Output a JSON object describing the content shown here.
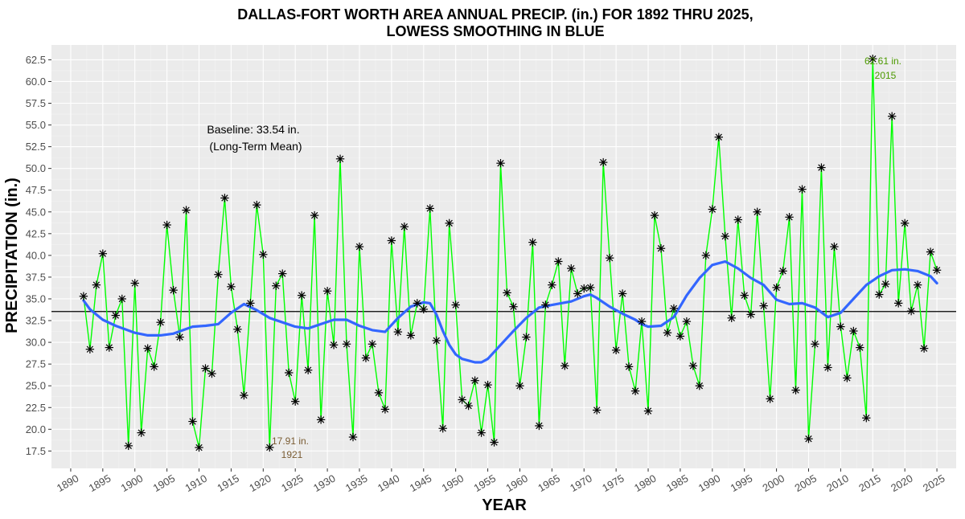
{
  "chart_data": {
    "type": "line",
    "title_line1": "DALLAS-FORT WORTH AREA ANNUAL PRECIP. (in.) FOR 1892 THRU 2025,",
    "title_line2": "LOWESS SMOOTHING IN BLUE",
    "xlabel": "YEAR",
    "ylabel": "PRECIPITATION (in.)",
    "xlim": [
      1887,
      2028
    ],
    "ylim": [
      15.5,
      64.2
    ],
    "grid": true,
    "x_ticks": [
      1890,
      1895,
      1900,
      1905,
      1910,
      1915,
      1920,
      1925,
      1930,
      1935,
      1940,
      1945,
      1950,
      1955,
      1960,
      1965,
      1970,
      1975,
      1980,
      1985,
      1990,
      1995,
      2000,
      2005,
      2010,
      2015,
      2020,
      2025
    ],
    "x_tick_labels": [
      "1890",
      "1895",
      "1900",
      "1905",
      "1910",
      "1915",
      "1920",
      "1925",
      "1930",
      "1935",
      "1940",
      "1945",
      "1950",
      "1955",
      "1960",
      "1965",
      "1970",
      "1975",
      "1980",
      "1985",
      "1990",
      "1995",
      "2000",
      "2005",
      "2010",
      "2015",
      "2020",
      "2025"
    ],
    "y_ticks": [
      17.5,
      20.0,
      22.5,
      25.0,
      27.5,
      30.0,
      32.5,
      35.0,
      37.5,
      40.0,
      42.5,
      45.0,
      47.5,
      50.0,
      52.5,
      55.0,
      57.5,
      60.0,
      62.5
    ],
    "y_tick_labels": [
      "17.5",
      "20.0",
      "22.5",
      "25.0",
      "27.5",
      "30.0",
      "32.5",
      "35.0",
      "37.5",
      "40.0",
      "42.5",
      "45.0",
      "47.5",
      "50.0",
      "52.5",
      "55.0",
      "57.5",
      "60.0",
      "62.5"
    ],
    "baseline": 33.54,
    "series": [
      {
        "color": "#00ff00",
        "marker": "asterisk",
        "x": [
          1892,
          1893,
          1894,
          1895,
          1896,
          1897,
          1898,
          1899,
          1900,
          1901,
          1902,
          1903,
          1904,
          1905,
          1906,
          1907,
          1908,
          1909,
          1910,
          1911,
          1912,
          1913,
          1914,
          1915,
          1916,
          1917,
          1918,
          1919,
          1920,
          1921,
          1922,
          1923,
          1924,
          1925,
          1926,
          1927,
          1928,
          1929,
          1930,
          1931,
          1932,
          1933,
          1934,
          1935,
          1936,
          1937,
          1938,
          1939,
          1940,
          1941,
          1942,
          1943,
          1944,
          1945,
          1946,
          1947,
          1948,
          1949,
          1950,
          1951,
          1952,
          1953,
          1954,
          1955,
          1956,
          1957,
          1958,
          1959,
          1960,
          1961,
          1962,
          1963,
          1964,
          1965,
          1966,
          1967,
          1968,
          1969,
          1970,
          1971,
          1972,
          1973,
          1974,
          1975,
          1976,
          1977,
          1978,
          1979,
          1980,
          1981,
          1982,
          1983,
          1984,
          1985,
          1986,
          1987,
          1988,
          1989,
          1990,
          1991,
          1992,
          1993,
          1994,
          1995,
          1996,
          1997,
          1998,
          1999,
          2000,
          2001,
          2002,
          2003,
          2004,
          2005,
          2006,
          2007,
          2008,
          2009,
          2010,
          2011,
          2012,
          2013,
          2014,
          2015,
          2016,
          2017,
          2018,
          2019,
          2020,
          2021,
          2022,
          2023,
          2024,
          2025
        ],
        "y": [
          35.3,
          29.2,
          36.6,
          40.2,
          29.4,
          33.1,
          35.0,
          18.1,
          36.8,
          19.6,
          29.3,
          27.2,
          32.3,
          43.5,
          36.0,
          30.6,
          45.2,
          20.9,
          17.9,
          27.0,
          26.4,
          37.8,
          46.6,
          36.4,
          31.5,
          23.9,
          34.5,
          45.8,
          40.1,
          17.91,
          36.5,
          37.9,
          26.5,
          23.2,
          35.4,
          26.8,
          44.6,
          21.1,
          35.9,
          29.7,
          51.1,
          29.8,
          19.1,
          41.0,
          28.2,
          29.8,
          24.2,
          22.3,
          41.7,
          31.2,
          43.3,
          30.8,
          34.5,
          33.8,
          45.4,
          30.2,
          20.1,
          43.7,
          34.3,
          23.4,
          22.7,
          25.6,
          19.6,
          25.1,
          18.5,
          50.6,
          35.7,
          34.1,
          25.0,
          30.6,
          41.5,
          20.4,
          34.3,
          36.6,
          39.3,
          27.3,
          38.5,
          35.6,
          36.2,
          36.3,
          22.2,
          50.7,
          39.7,
          29.1,
          35.6,
          27.2,
          24.4,
          32.4,
          22.1,
          44.6,
          40.8,
          31.1,
          33.9,
          30.7,
          32.4,
          27.3,
          25.0,
          40.0,
          45.3,
          53.6,
          42.2,
          32.8,
          44.1,
          35.4,
          33.2,
          45.0,
          34.2,
          23.5,
          36.3,
          38.2,
          44.4,
          24.5,
          47.6,
          18.9,
          29.8,
          50.1,
          27.1,
          41.0,
          31.8,
          25.9,
          31.3,
          29.4,
          21.3,
          62.61,
          35.5,
          36.7,
          56.0,
          34.5,
          43.7,
          33.6,
          36.6,
          29.3,
          40.4,
          38.3
        ]
      },
      {
        "color": "#3366ff",
        "marker": "none",
        "x": [
          1892,
          1893,
          1895,
          1897,
          1900,
          1902,
          1904,
          1906,
          1909,
          1911,
          1913,
          1915,
          1917,
          1919,
          1921,
          1923,
          1925,
          1927,
          1929,
          1931,
          1933,
          1935,
          1937,
          1939,
          1941,
          1943,
          1945,
          1946,
          1947,
          1948,
          1949,
          1950,
          1951,
          1952,
          1953,
          1954,
          1955,
          1957,
          1959,
          1961,
          1963,
          1965,
          1968,
          1970,
          1971,
          1972,
          1974,
          1976,
          1978,
          1979,
          1980,
          1982,
          1984,
          1986,
          1988,
          1990,
          1992,
          1994,
          1996,
          1998,
          2000,
          2002,
          2004,
          2006,
          2008,
          2010,
          2012,
          2014,
          2016,
          2018,
          2020,
          2022,
          2024,
          2025
        ],
        "y": [
          34.8,
          33.8,
          32.6,
          31.9,
          31.1,
          30.8,
          30.8,
          31.0,
          31.8,
          31.9,
          32.1,
          33.4,
          34.4,
          33.7,
          32.8,
          32.3,
          31.8,
          31.6,
          32.1,
          32.6,
          32.6,
          31.9,
          31.4,
          31.2,
          32.8,
          34.1,
          34.6,
          34.5,
          33.2,
          31.3,
          29.7,
          28.6,
          28.1,
          27.9,
          27.7,
          27.7,
          28.1,
          29.7,
          31.3,
          32.8,
          34.0,
          34.3,
          34.7,
          35.3,
          35.5,
          35.1,
          34.1,
          33.3,
          32.6,
          32.1,
          31.8,
          31.9,
          32.9,
          35.4,
          37.4,
          38.9,
          39.3,
          38.5,
          37.4,
          36.6,
          34.9,
          34.4,
          34.5,
          34.0,
          32.9,
          33.4,
          35.0,
          36.6,
          37.6,
          38.3,
          38.4,
          38.2,
          37.6,
          36.8
        ]
      }
    ],
    "annotations": {
      "baseline_line1": "Baseline: 33.54 in.",
      "baseline_line2": "(Long-Term Mean)",
      "max_line1": "62.61 in.",
      "max_line2": "2015",
      "max_color": "#4c9900",
      "min_line1": "17.91 in.",
      "min_line2": "1921",
      "min_color": "#7a5c33"
    },
    "colors": {
      "panel": "#ebebeb",
      "grid_major": "#ffffff",
      "grid_minor": "#f3f3f3",
      "baseline": "#000000",
      "marker": "#000000"
    }
  }
}
